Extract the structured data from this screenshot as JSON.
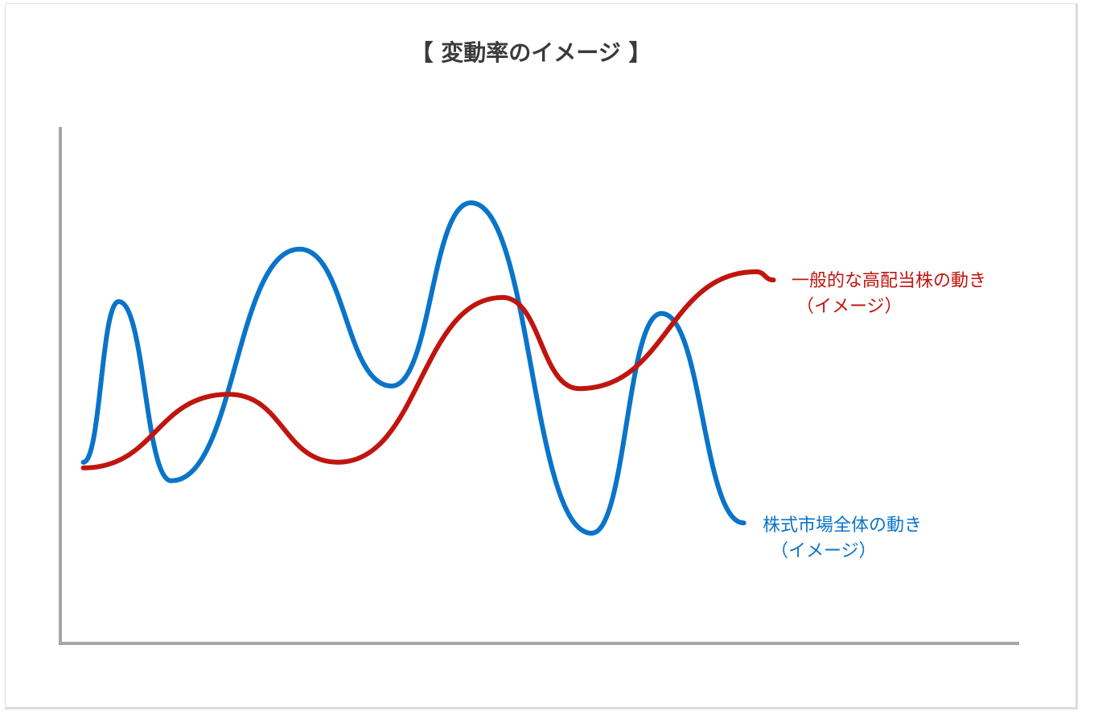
{
  "chart_data": {
    "type": "line",
    "title": "【 変動率のイメージ 】",
    "xlabel": "",
    "ylabel": "",
    "xlim": [
      0,
      100
    ],
    "ylim": [
      0,
      100
    ],
    "grid": false,
    "axes": {
      "x_ticks": false,
      "y_ticks": false
    },
    "series": [
      {
        "name": "株式市場全体の動き（イメージ）",
        "label_line1": "株式市場全体の動き",
        "label_line2": "（イメージ）",
        "color": "#0a74c9",
        "points": [
          [
            2.4,
            35.2
          ],
          [
            6.1,
            66.4
          ],
          [
            11.6,
            31.6
          ],
          [
            25,
            76.6
          ],
          [
            34.6,
            50
          ],
          [
            42.9,
            85.6
          ],
          [
            55.5,
            21.4
          ],
          [
            62.8,
            64.1
          ],
          [
            71.4,
            23.4
          ]
        ]
      },
      {
        "name": "一般的な高配当株の動き（イメージ）",
        "label_line1": "一般的な高配当株の動き",
        "label_line2": "（イメージ）",
        "color": "#c0150f",
        "points": [
          [
            2.4,
            34.1
          ],
          [
            17.6,
            48.4
          ],
          [
            29,
            35.2
          ],
          [
            46.2,
            67.2
          ],
          [
            54.2,
            49.5
          ],
          [
            72.7,
            72.2
          ],
          [
            74.5,
            70.6
          ]
        ]
      }
    ]
  }
}
